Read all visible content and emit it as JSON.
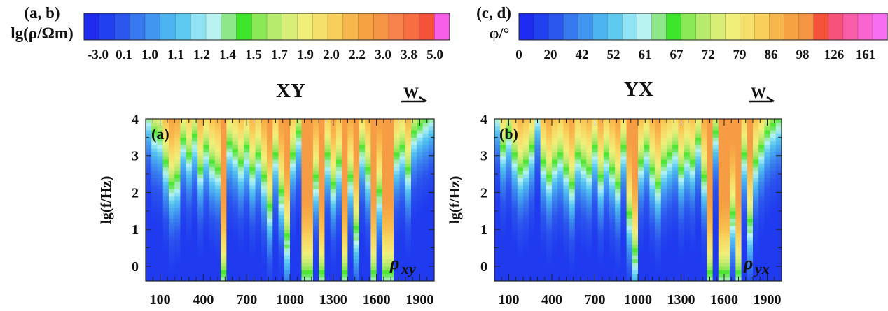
{
  "colorbar_left": {
    "panel_tag": "(a, b)",
    "quantity": "lg(ρ/Ωm)",
    "tick_labels": [
      "-3.0",
      "0.1",
      "1.0",
      "1.1",
      "1.2",
      "1.4",
      "1.5",
      "1.7",
      "1.9",
      "2.0",
      "2.2",
      "3.0",
      "3.8",
      "5.0"
    ],
    "colors": [
      "#1f2cf0",
      "#2140ef",
      "#2c57ee",
      "#3678ee",
      "#4196ef",
      "#4cb4f0",
      "#5fcaf0",
      "#8fe3f2",
      "#b8f3f2",
      "#8ee88a",
      "#3de52b",
      "#8be857",
      "#b6ea6d",
      "#d9ee77",
      "#f0ef79",
      "#f6e06c",
      "#f9cf5c",
      "#f8b74c",
      "#f6a243",
      "#f59445",
      "#f7834a",
      "#f66e42",
      "#f55239",
      "#f85fe9"
    ]
  },
  "colorbar_right": {
    "panel_tag": "(c, d)",
    "quantity": "φ/°",
    "tick_labels": [
      "0",
      "20",
      "42",
      "52",
      "61",
      "67",
      "72",
      "79",
      "86",
      "98",
      "126",
      "161"
    ],
    "colors": [
      "#1f2cf0",
      "#2140ef",
      "#2c57ee",
      "#3678ee",
      "#4196ef",
      "#4cb4f0",
      "#5fcaf0",
      "#8fe3f2",
      "#b8f3f2",
      "#8ee88a",
      "#3de52b",
      "#8be857",
      "#b6ea6d",
      "#d9ee77",
      "#f0ef79",
      "#f6e06c",
      "#f9cf5c",
      "#f8b74c",
      "#f6a243",
      "#f59445",
      "#f55239",
      "#f6527a",
      "#f85fa8",
      "#f864d0",
      "#f86ef0"
    ]
  },
  "chart_data": [
    {
      "type": "heatmap",
      "panel_label": "(a)",
      "title": "XY",
      "direction_label": "W",
      "quantity_symbol": "ρ",
      "quantity_subscript": "xy",
      "xlabel": "",
      "ylabel": "lg(f/Hz)",
      "xlim": [
        0,
        2000
      ],
      "ylim": [
        -0.4,
        4
      ],
      "xticks": [
        100,
        400,
        700,
        1000,
        1300,
        1600,
        1900
      ],
      "yticks": [
        0,
        1,
        2,
        3,
        4
      ],
      "colorbar": "lg(ρ/Ωm)",
      "columns": [
        {
          "x": 20,
          "boundary": 4.0,
          "value": 0.5
        },
        {
          "x": 60,
          "boundary": 3.4,
          "value": 0.3
        },
        {
          "x": 100,
          "boundary": 3.3,
          "value": 0.3
        },
        {
          "x": 140,
          "boundary": 2.6,
          "value": 0.4
        },
        {
          "x": 180,
          "boundary": 2.0,
          "value": 0.3
        },
        {
          "x": 220,
          "boundary": 2.2,
          "value": 0.5
        },
        {
          "x": 260,
          "boundary": 3.2,
          "value": 0.3
        },
        {
          "x": 300,
          "boundary": 2.8,
          "value": 0.3
        },
        {
          "x": 340,
          "boundary": 3.3,
          "value": 0.4
        },
        {
          "x": 380,
          "boundary": 2.4,
          "value": 0.3
        },
        {
          "x": 420,
          "boundary": 3.0,
          "value": 0.3
        },
        {
          "x": 460,
          "boundary": 2.6,
          "value": 0.4
        },
        {
          "x": 500,
          "boundary": 2.4,
          "value": 0.3
        },
        {
          "x": 540,
          "boundary": -0.4,
          "value": 0.9
        },
        {
          "x": 580,
          "boundary": 3.1,
          "value": 0.3
        },
        {
          "x": 620,
          "boundary": 2.9,
          "value": 0.3
        },
        {
          "x": 660,
          "boundary": 2.6,
          "value": 0.4
        },
        {
          "x": 700,
          "boundary": 3.0,
          "value": 0.5
        },
        {
          "x": 740,
          "boundary": 2.4,
          "value": 0.4
        },
        {
          "x": 780,
          "boundary": 2.8,
          "value": 0.3
        },
        {
          "x": 820,
          "boundary": 2.2,
          "value": 0.4
        },
        {
          "x": 860,
          "boundary": 1.4,
          "value": 0.5
        },
        {
          "x": 900,
          "boundary": 2.8,
          "value": 0.3
        },
        {
          "x": 940,
          "boundary": 1.8,
          "value": 0.6
        },
        {
          "x": 980,
          "boundary": 0.6,
          "value": 0.7
        },
        {
          "x": 1020,
          "boundary": 2.8,
          "value": 0.3
        },
        {
          "x": 1060,
          "boundary": 3.4,
          "value": 0.3
        },
        {
          "x": 1100,
          "boundary": -0.4,
          "value": 0.9
        },
        {
          "x": 1140,
          "boundary": -0.4,
          "value": 0.9
        },
        {
          "x": 1180,
          "boundary": 2.2,
          "value": 0.6
        },
        {
          "x": 1220,
          "boundary": -0.4,
          "value": 0.7
        },
        {
          "x": 1260,
          "boundary": 2.8,
          "value": 0.5
        },
        {
          "x": 1300,
          "boundary": 2.0,
          "value": 0.4
        },
        {
          "x": 1340,
          "boundary": 2.6,
          "value": 0.4
        },
        {
          "x": 1380,
          "boundary": -0.4,
          "value": 0.6
        },
        {
          "x": 1420,
          "boundary": 2.2,
          "value": 0.4
        },
        {
          "x": 1460,
          "boundary": 0.8,
          "value": 0.6
        },
        {
          "x": 1500,
          "boundary": 3.0,
          "value": 0.4
        },
        {
          "x": 1540,
          "boundary": 2.4,
          "value": 0.5
        },
        {
          "x": 1580,
          "boundary": -0.4,
          "value": 0.6
        },
        {
          "x": 1620,
          "boundary": 1.8,
          "value": 0.5
        },
        {
          "x": 1660,
          "boundary": -0.4,
          "value": 0.9
        },
        {
          "x": 1700,
          "boundary": -0.4,
          "value": 0.9
        },
        {
          "x": 1740,
          "boundary": 2.8,
          "value": 0.4
        },
        {
          "x": 1780,
          "boundary": 3.0,
          "value": 0.3
        },
        {
          "x": 1820,
          "boundary": 2.4,
          "value": 0.4
        },
        {
          "x": 1860,
          "boundary": 3.4,
          "value": 0.3
        },
        {
          "x": 1900,
          "boundary": 3.6,
          "value": 0.3
        },
        {
          "x": 1940,
          "boundary": 3.8,
          "value": 0.4
        },
        {
          "x": 1980,
          "boundary": 4.0,
          "value": 0.5
        }
      ]
    },
    {
      "type": "heatmap",
      "panel_label": "(b)",
      "title": "YX",
      "direction_label": "W",
      "quantity_symbol": "ρ",
      "quantity_subscript": "yx",
      "xlabel": "",
      "ylabel": "lg(f/Hz)",
      "xlim": [
        0,
        2000
      ],
      "ylim": [
        -0.4,
        4
      ],
      "xticks": [
        100,
        400,
        700,
        1000,
        1300,
        1600,
        1900
      ],
      "yticks": [
        0,
        1,
        2,
        3,
        4
      ],
      "colorbar": "lg(ρ/Ωm)",
      "columns": [
        {
          "x": 20,
          "boundary": 4.0,
          "value": 0.4
        },
        {
          "x": 60,
          "boundary": 3.0,
          "value": 0.3
        },
        {
          "x": 100,
          "boundary": 3.4,
          "value": 0.3
        },
        {
          "x": 140,
          "boundary": 2.8,
          "value": 0.3
        },
        {
          "x": 180,
          "boundary": 2.4,
          "value": 0.3
        },
        {
          "x": 220,
          "boundary": 2.6,
          "value": 0.3
        },
        {
          "x": 260,
          "boundary": 3.0,
          "value": 0.3
        },
        {
          "x": 300,
          "boundary": 4.0,
          "value": 0.4
        },
        {
          "x": 340,
          "boundary": 2.6,
          "value": 0.3
        },
        {
          "x": 380,
          "boundary": 2.2,
          "value": 0.3
        },
        {
          "x": 420,
          "boundary": 2.6,
          "value": 0.3
        },
        {
          "x": 460,
          "boundary": 2.8,
          "value": 0.3
        },
        {
          "x": 500,
          "boundary": 2.4,
          "value": 0.3
        },
        {
          "x": 540,
          "boundary": 2.0,
          "value": 0.4
        },
        {
          "x": 580,
          "boundary": 2.8,
          "value": 0.3
        },
        {
          "x": 620,
          "boundary": 2.6,
          "value": 0.3
        },
        {
          "x": 660,
          "boundary": 2.4,
          "value": 0.3
        },
        {
          "x": 700,
          "boundary": 3.0,
          "value": 0.3
        },
        {
          "x": 740,
          "boundary": 2.2,
          "value": 0.4
        },
        {
          "x": 780,
          "boundary": 2.8,
          "value": 0.3
        },
        {
          "x": 820,
          "boundary": 2.4,
          "value": 0.3
        },
        {
          "x": 860,
          "boundary": 2.0,
          "value": 0.4
        },
        {
          "x": 900,
          "boundary": 3.0,
          "value": 0.3
        },
        {
          "x": 940,
          "boundary": 1.2,
          "value": 0.5
        },
        {
          "x": 980,
          "boundary": 0.2,
          "value": 0.7
        },
        {
          "x": 1020,
          "boundary": 2.6,
          "value": 0.3
        },
        {
          "x": 1060,
          "boundary": 3.0,
          "value": 0.3
        },
        {
          "x": 1100,
          "boundary": 2.4,
          "value": 0.4
        },
        {
          "x": 1140,
          "boundary": 2.0,
          "value": 0.4
        },
        {
          "x": 1180,
          "boundary": 2.6,
          "value": 0.3
        },
        {
          "x": 1220,
          "boundary": 2.8,
          "value": 0.3
        },
        {
          "x": 1260,
          "boundary": 3.0,
          "value": 0.3
        },
        {
          "x": 1300,
          "boundary": 2.4,
          "value": 0.3
        },
        {
          "x": 1340,
          "boundary": 2.8,
          "value": 0.3
        },
        {
          "x": 1380,
          "boundary": 2.6,
          "value": 0.3
        },
        {
          "x": 1420,
          "boundary": 3.2,
          "value": 0.3
        },
        {
          "x": 1460,
          "boundary": 2.2,
          "value": 0.4
        },
        {
          "x": 1500,
          "boundary": -0.4,
          "value": 0.6
        },
        {
          "x": 1540,
          "boundary": 3.4,
          "value": 0.3
        },
        {
          "x": 1580,
          "boundary": -0.4,
          "value": 0.8
        },
        {
          "x": 1620,
          "boundary": -0.4,
          "value": 0.9
        },
        {
          "x": 1660,
          "boundary": 1.2,
          "value": 0.6
        },
        {
          "x": 1700,
          "boundary": -0.4,
          "value": 0.9
        },
        {
          "x": 1740,
          "boundary": 2.8,
          "value": 0.4
        },
        {
          "x": 1780,
          "boundary": 1.0,
          "value": 0.6
        },
        {
          "x": 1820,
          "boundary": 2.6,
          "value": 0.4
        },
        {
          "x": 1860,
          "boundary": 3.0,
          "value": 0.3
        },
        {
          "x": 1900,
          "boundary": 3.4,
          "value": 0.3
        },
        {
          "x": 1940,
          "boundary": 3.6,
          "value": 0.3
        },
        {
          "x": 1980,
          "boundary": 3.8,
          "value": 0.4
        }
      ]
    }
  ]
}
